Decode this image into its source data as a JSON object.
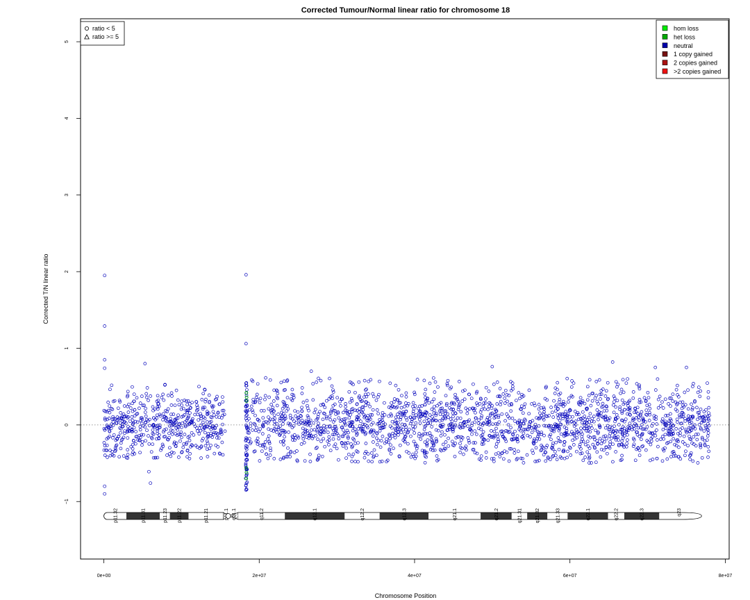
{
  "chart_data": {
    "type": "scatter",
    "title": "Corrected Tumour/Normal linear ratio for chromosome  18",
    "xlabel": "Chromosome Position",
    "ylabel": "Corrected T/N linear ratio",
    "xlim": [
      -3000000,
      80500000
    ],
    "ylim": [
      -1.75,
      5.3
    ],
    "x_ticks": [
      0,
      20000000,
      40000000,
      60000000,
      80000000
    ],
    "x_tick_labels": [
      "0e+00",
      "2e+07",
      "4e+07",
      "6e+07",
      "8e+07"
    ],
    "y_ticks": [
      -1,
      0,
      1,
      2,
      3,
      4,
      5
    ],
    "y_tick_labels": [
      "−1",
      "0",
      "1",
      "2",
      "3",
      "4",
      "5"
    ],
    "reference_line_y": 0,
    "point_color": "#0000bb",
    "shape_legend": {
      "position": "top-left",
      "entries": [
        {
          "label": "ratio < 5",
          "symbol": "circle"
        },
        {
          "label": "ratio >= 5",
          "symbol": "triangle"
        }
      ]
    },
    "color_legend": {
      "position": "top-right",
      "entries": [
        {
          "label": "hom loss",
          "color": "#00ee00"
        },
        {
          "label": "het loss",
          "color": "#00aa00"
        },
        {
          "label": "neutral",
          "color": "#0000aa"
        },
        {
          "label": "1 copy gained",
          "color": "#771111"
        },
        {
          "label": "2 copies gained",
          "color": "#aa1111"
        },
        {
          "label": ">2 copies gained",
          "color": "#ee1111"
        }
      ]
    },
    "series": [
      {
        "category": "neutral",
        "segments": [
          {
            "x": [
              0,
              15600000
            ],
            "spread": 0.55
          },
          {
            "x": [
              18500000,
              78000000
            ],
            "spread": 0.62
          }
        ],
        "outliers": [
          {
            "x": 100000,
            "y": 1.95
          },
          {
            "x": 100000,
            "y": 1.29
          },
          {
            "x": 100000,
            "y": 0.85
          },
          {
            "x": 100000,
            "y": 0.74
          },
          {
            "x": 100000,
            "y": -0.8
          },
          {
            "x": 100000,
            "y": -0.9
          },
          {
            "x": 5800000,
            "y": -0.61
          },
          {
            "x": 6000000,
            "y": -0.76
          },
          {
            "x": 5300000,
            "y": 0.8
          },
          {
            "x": 18300000,
            "y": 1.96
          },
          {
            "x": 18300000,
            "y": 1.06
          },
          {
            "x": 18300000,
            "y": -0.85
          },
          {
            "x": 50000000,
            "y": 0.76
          },
          {
            "x": 65500000,
            "y": 0.82
          },
          {
            "x": 71000000,
            "y": 0.75
          },
          {
            "x": 75000000,
            "y": 0.75
          },
          {
            "x": 26700000,
            "y": 0.7
          }
        ]
      },
      {
        "category": "het loss",
        "points": [
          {
            "x": 18350000,
            "y": 0.42
          },
          {
            "x": 18380000,
            "y": 0.36
          },
          {
            "x": 18320000,
            "y": -0.56
          },
          {
            "x": 18360000,
            "y": -0.62
          },
          {
            "x": 18340000,
            "y": -0.7
          },
          {
            "x": 18370000,
            "y": 0.31
          }
        ]
      }
    ],
    "ideogram": {
      "bands": [
        {
          "label": "p11.32",
          "start": 0,
          "end": 2900000,
          "stain": "gneg"
        },
        {
          "label": "p11.31",
          "start": 2900000,
          "end": 7200000,
          "stain": "gpos"
        },
        {
          "label": "p11.23",
          "start": 7200000,
          "end": 8500000,
          "stain": "gneg"
        },
        {
          "label": "p11.22",
          "start": 8500000,
          "end": 10900000,
          "stain": "gpos"
        },
        {
          "label": "p11.21",
          "start": 10900000,
          "end": 15400000,
          "stain": "gneg"
        },
        {
          "label": "p11.1",
          "start": 15400000,
          "end": 16100000,
          "stain": "acen"
        },
        {
          "label": "q11.1",
          "start": 16100000,
          "end": 17300000,
          "stain": "stalk"
        },
        {
          "label": "q11.2",
          "start": 17300000,
          "end": 23300000,
          "stain": "gneg"
        },
        {
          "label": "q12.1",
          "start": 23300000,
          "end": 31000000,
          "stain": "gpos"
        },
        {
          "label": "q12.2",
          "start": 31000000,
          "end": 35500000,
          "stain": "gneg"
        },
        {
          "label": "q12.3",
          "start": 35500000,
          "end": 41800000,
          "stain": "gpos"
        },
        {
          "label": "q21.1",
          "start": 41800000,
          "end": 48500000,
          "stain": "gneg"
        },
        {
          "label": "q21.2",
          "start": 48500000,
          "end": 52500000,
          "stain": "gpos"
        },
        {
          "label": "q21.31",
          "start": 52500000,
          "end": 54500000,
          "stain": "gneg"
        },
        {
          "label": "q21.32",
          "start": 54500000,
          "end": 57100000,
          "stain": "gpos"
        },
        {
          "label": "q21.33",
          "start": 57100000,
          "end": 59700000,
          "stain": "gneg"
        },
        {
          "label": "q22.1",
          "start": 59700000,
          "end": 64900000,
          "stain": "gpos"
        },
        {
          "label": "q22.2",
          "start": 64900000,
          "end": 67000000,
          "stain": "gneg"
        },
        {
          "label": "q22.3",
          "start": 67000000,
          "end": 71500000,
          "stain": "gpos"
        },
        {
          "label": "q23",
          "start": 71500000,
          "end": 76500000,
          "stain": "gneg"
        }
      ]
    }
  }
}
